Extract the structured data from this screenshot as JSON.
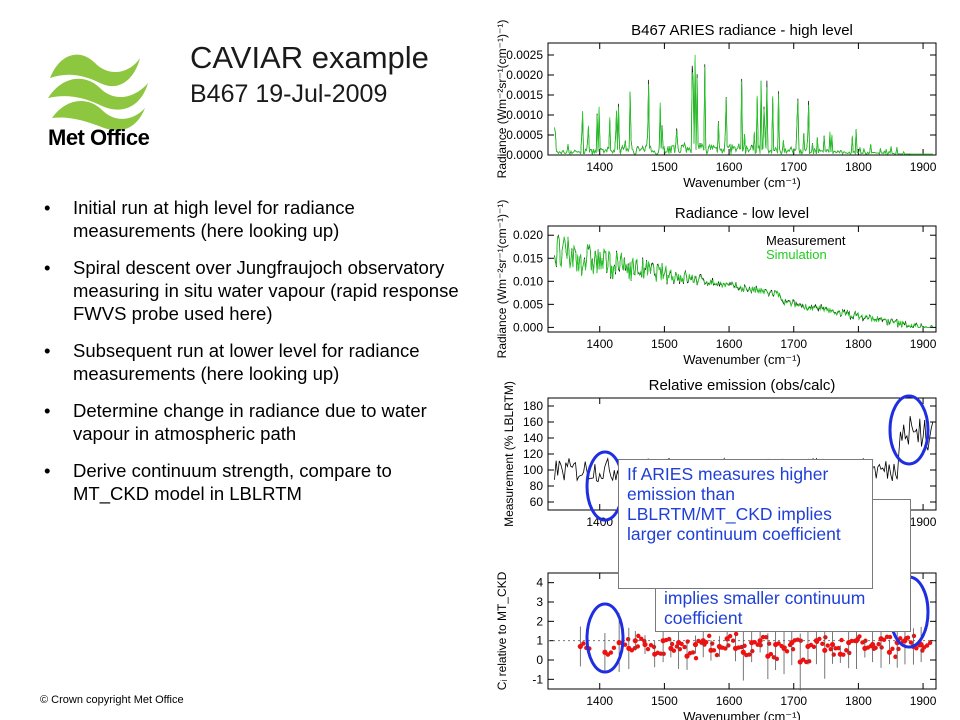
{
  "header": {
    "title": "CAVIAR example",
    "subtitle": "B467 19-Jul-2009"
  },
  "logo": {
    "text": "Met Office",
    "color": "#8dc63f"
  },
  "bullets": [
    "Initial run at high level for radiance measurements (here looking up)",
    "Spiral descent over Jungfraujoch observatory measuring in situ water vapour (rapid response FWVS probe used here)",
    "Subsequent run at lower level for radiance measurements (here looking up)",
    "Determine change in radiance due to water vapour in atmospheric path",
    "Derive continuum strength, compare to MT_CKD model in LBLRTM"
  ],
  "footer": {
    "copyright": "© Crown copyright   Met Office"
  },
  "annotations": {
    "higher": "If ARIES measures higher emission than LBLRTM/MT_CKD implies larger continuum coefficient",
    "lower": "implies smaller continuum coefficient"
  },
  "colors": {
    "measurement": "#000000",
    "simulation": "#22cc22",
    "ratio_points": "#ee1111",
    "highlight_circles": "#1f2ee0",
    "note_text": "#1f3fd6"
  },
  "chart_data": [
    {
      "type": "line",
      "title": "B467 ARIES radiance - high level",
      "xlabel": "Wavenumber (cm⁻¹)",
      "ylabel": "Radiance (Wm⁻²sr⁻¹(cm⁻¹)⁻¹)",
      "xlim": [
        1320,
        1920
      ],
      "ylim": [
        0,
        0.0028
      ],
      "xticks": [
        "1400",
        "1500",
        "1600",
        "1700",
        "1800",
        "1900"
      ],
      "yticks": [
        "0.0000",
        "0.0005",
        "0.0010",
        "0.0015",
        "0.0020",
        "0.0025"
      ],
      "series": [
        {
          "name": "Measurement",
          "color": "#000000"
        },
        {
          "name": "Simulation",
          "color": "#22cc22"
        }
      ]
    },
    {
      "type": "line",
      "title": "Radiance - low level",
      "xlabel": "Wavenumber (cm⁻¹)",
      "ylabel": "Radiance (Wm⁻²sr⁻¹(cm⁻¹)⁻¹)",
      "xlim": [
        1320,
        1920
      ],
      "ylim": [
        -0.001,
        0.022
      ],
      "xticks": [
        "1400",
        "1500",
        "1600",
        "1700",
        "1800",
        "1900"
      ],
      "yticks": [
        "0.000",
        "0.005",
        "0.010",
        "0.015",
        "0.020"
      ],
      "legend": [
        "Measurement",
        "Simulation"
      ],
      "legend_position": "top-right",
      "series": [
        {
          "name": "Measurement",
          "color": "#000000"
        },
        {
          "name": "Simulation",
          "color": "#22cc22"
        }
      ]
    },
    {
      "type": "line",
      "title": "Relative emission (obs/calc)",
      "xlabel": "",
      "ylabel": "Measurement (% LBLRTM)",
      "xlim": [
        1320,
        1920
      ],
      "ylim": [
        50,
        190
      ],
      "xticks": [
        "1400",
        "1900"
      ],
      "yticks": [
        "60",
        "80",
        "100",
        "120",
        "140",
        "160",
        "180"
      ]
    },
    {
      "type": "scatter",
      "title": "",
      "xlabel": "Wavenumber (cm⁻¹)",
      "ylabel": "Cᵢ relative to MT_CKD",
      "xlim": [
        1320,
        1920
      ],
      "ylim": [
        -1.5,
        4.5
      ],
      "xticks": [
        "1400",
        "1500",
        "1600",
        "1700",
        "1800",
        "1900"
      ],
      "yticks": [
        "-1",
        "0",
        "1",
        "2",
        "3",
        "4"
      ],
      "reference_line": 1,
      "x": [
        1370,
        1408,
        1430,
        1445,
        1455,
        1470,
        1485,
        1498,
        1510,
        1522,
        1535,
        1548,
        1560,
        1572,
        1585,
        1597,
        1610,
        1622,
        1635,
        1648,
        1660,
        1672,
        1685,
        1697,
        1710,
        1722,
        1735,
        1748,
        1760,
        1772,
        1785,
        1797,
        1810,
        1822,
        1835,
        1848,
        1860,
        1872,
        1885,
        1897
      ],
      "y": [
        0.7,
        0.4,
        0.9,
        0.6,
        1.0,
        0.8,
        0.3,
        1.0,
        0.6,
        0.9,
        0.2,
        0.8,
        1.0,
        0.5,
        0.7,
        1.1,
        0.6,
        0.4,
        0.9,
        1.0,
        0.2,
        0.8,
        0.6,
        0.9,
        -0.1,
        0.7,
        1.0,
        0.5,
        0.8,
        0.3,
        0.9,
        1.0,
        0.6,
        0.8,
        1.1,
        0.4,
        0.9,
        1.0,
        0.7,
        0.8
      ]
    }
  ]
}
